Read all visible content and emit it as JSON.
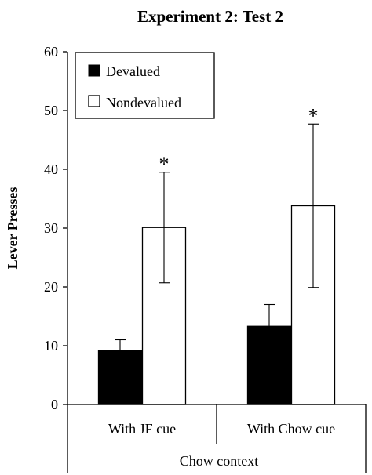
{
  "chart_data": {
    "type": "bar",
    "title": "Experiment 2: Test 2",
    "ylabel": "Lever Presses",
    "xlabel": "Chow context",
    "ylim": [
      0,
      60
    ],
    "yticks": [
      0,
      10,
      20,
      30,
      40,
      50,
      60
    ],
    "categories": [
      "With JF cue",
      "With Chow cue"
    ],
    "legend_position": "top-left",
    "grid": false,
    "series": [
      {
        "name": "Devalued",
        "color": "#000000",
        "values": [
          9.2,
          13.3
        ],
        "errors": [
          1.8,
          3.7
        ],
        "annotations": [
          "",
          ""
        ]
      },
      {
        "name": "Nondevalued",
        "color": "#ffffff",
        "values": [
          30.1,
          33.8
        ],
        "errors": [
          9.4,
          13.9
        ],
        "annotations": [
          "*",
          "*"
        ]
      }
    ]
  }
}
